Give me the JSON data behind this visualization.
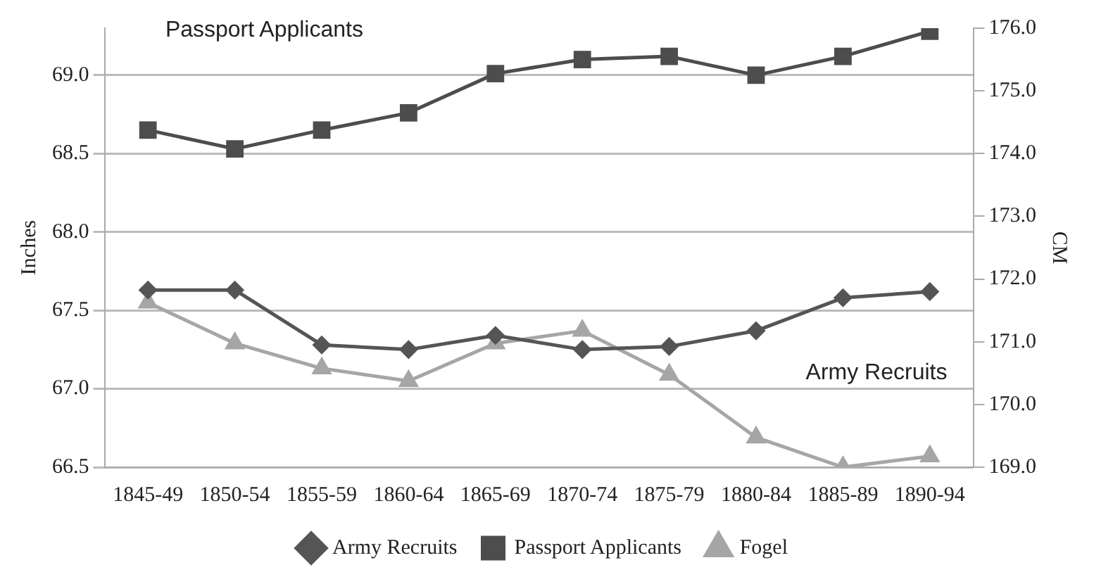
{
  "chart_data": {
    "type": "line",
    "ylabel": "Inches",
    "y2label": "CM",
    "categories": [
      "1845-49",
      "1850-54",
      "1855-59",
      "1860-64",
      "1865-69",
      "1870-74",
      "1875-79",
      "1880-84",
      "1885-89",
      "1890-94"
    ],
    "series": [
      {
        "name": "Army Recruits",
        "color": "#555555",
        "marker": "diamond",
        "values": [
          67.63,
          67.63,
          67.28,
          67.25,
          67.34,
          67.25,
          67.27,
          67.37,
          67.58,
          67.62
        ]
      },
      {
        "name": "Passport Applicants",
        "color": "#4d4d4d",
        "marker": "square",
        "values": [
          68.65,
          68.53,
          68.65,
          68.76,
          69.01,
          69.1,
          69.12,
          69.0,
          69.12,
          69.28
        ]
      },
      {
        "name": "Fogel",
        "color": "#a6a6a6",
        "marker": "triangle",
        "values": [
          67.55,
          67.29,
          67.13,
          67.05,
          67.29,
          67.37,
          67.09,
          66.69,
          66.5,
          66.57
        ]
      }
    ],
    "ylim": [
      66.5,
      69.3
    ],
    "yticks": [
      66.5,
      {
        "value": 67,
        "label": "67.0"
      },
      67.5,
      {
        "value": 68,
        "label": "68.0"
      },
      68.5,
      {
        "value": 69,
        "label": "69.0"
      }
    ],
    "y2lim": [
      169,
      176
    ],
    "y2ticks": [
      {
        "value": 169,
        "label": "169.0"
      },
      {
        "value": 170,
        "label": "170.0"
      },
      {
        "value": 171,
        "label": "171.0"
      },
      {
        "value": 172,
        "label": "172.0"
      },
      {
        "value": 173,
        "label": "173.0"
      },
      {
        "value": 174,
        "label": "174.0"
      },
      {
        "value": 175,
        "label": "175.0"
      },
      {
        "value": 176,
        "label": "176.0"
      }
    ],
    "annotations": [
      "Passport Applicants",
      "Army Recruits"
    ],
    "grid": "y",
    "legend": "bottom"
  }
}
